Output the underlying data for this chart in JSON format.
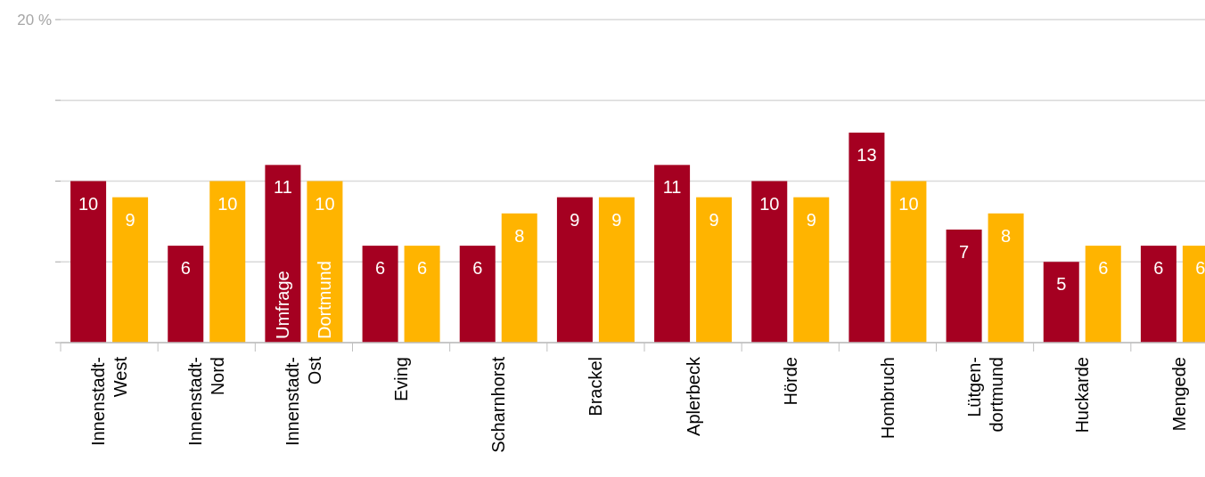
{
  "chart_data": {
    "type": "bar",
    "categories": [
      "Innenstadt-\nWest",
      "Innenstadt-\nNord",
      "Innenstadt-\nOst",
      "Eving",
      "Scharnhorst",
      "Brackel",
      "Aplerbeck",
      "Hörde",
      "Hombruch",
      "Lütgen-\ndortmund",
      "Huckarde",
      "Mengede"
    ],
    "series": [
      {
        "name": "Umfrage",
        "color": "#a50021",
        "values": [
          10,
          6,
          11,
          6,
          6,
          9,
          11,
          10,
          13,
          7,
          5,
          6
        ]
      },
      {
        "name": "Dortmund",
        "color": "#ffb400",
        "values": [
          9,
          10,
          10,
          6,
          8,
          9,
          9,
          9,
          10,
          8,
          6,
          6
        ]
      }
    ],
    "ylim": [
      0,
      20
    ],
    "yticks": [
      {
        "value": 0,
        "label": null
      },
      {
        "value": 5,
        "label": null
      },
      {
        "value": 10,
        "label": null
      },
      {
        "value": 15,
        "label": null
      },
      {
        "value": 20,
        "label": "20 %"
      }
    ],
    "grid": "y",
    "data_labels": true
  }
}
